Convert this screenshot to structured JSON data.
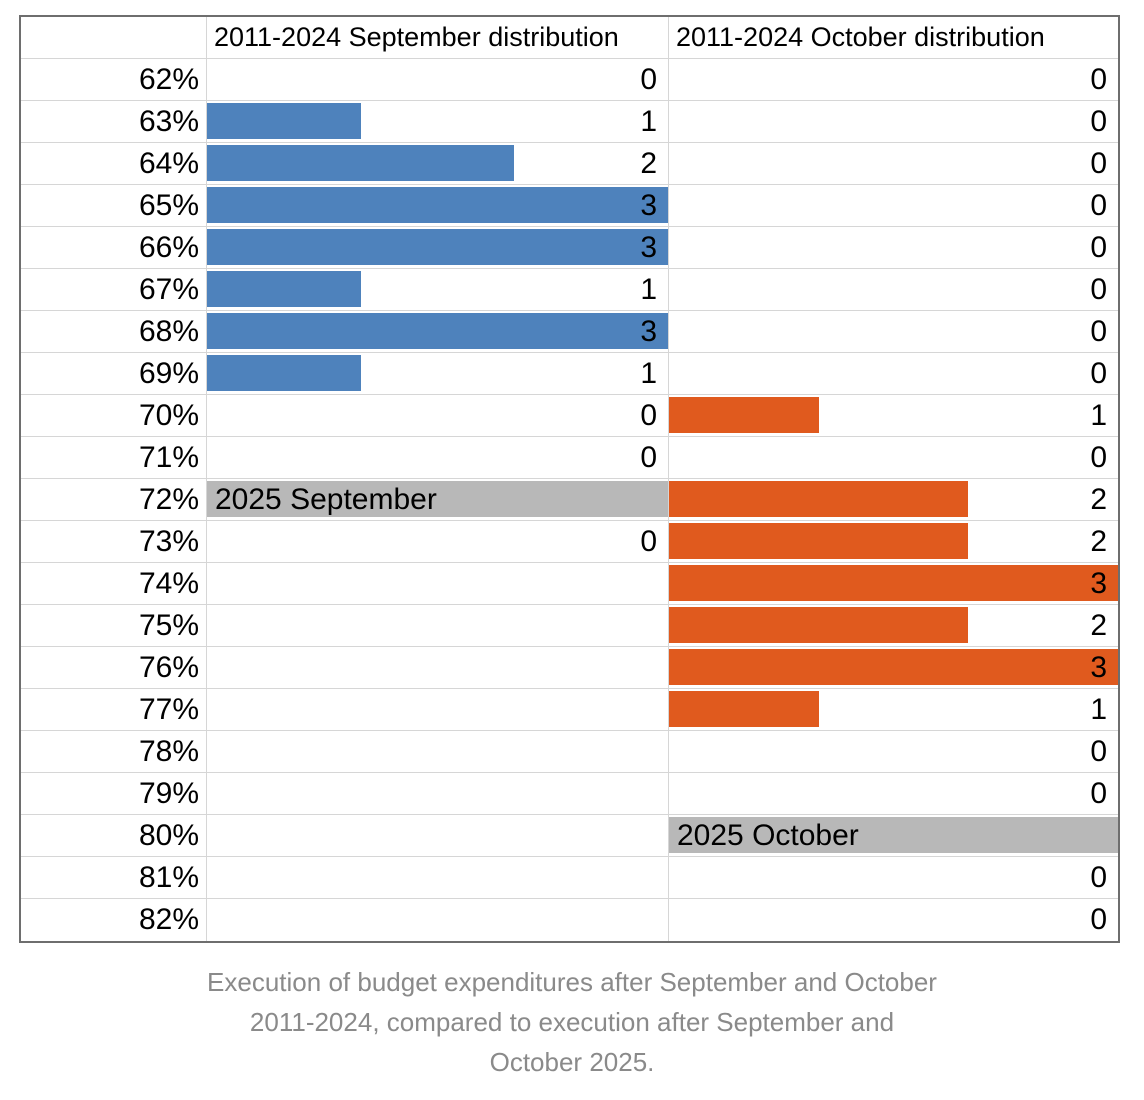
{
  "header": {
    "label_col": "",
    "september": "2011-2024 September distribution",
    "october": "2011-2024 October distribution"
  },
  "rows": [
    {
      "label": "62%",
      "sep": "0",
      "sep_bar": 0,
      "sep_marker": false,
      "oct": "0",
      "oct_bar": 0,
      "oct_marker": false
    },
    {
      "label": "63%",
      "sep": "1",
      "sep_bar": 1,
      "sep_marker": false,
      "oct": "0",
      "oct_bar": 0,
      "oct_marker": false
    },
    {
      "label": "64%",
      "sep": "2",
      "sep_bar": 2,
      "sep_marker": false,
      "oct": "0",
      "oct_bar": 0,
      "oct_marker": false
    },
    {
      "label": "65%",
      "sep": "3",
      "sep_bar": 3,
      "sep_marker": false,
      "oct": "0",
      "oct_bar": 0,
      "oct_marker": false
    },
    {
      "label": "66%",
      "sep": "3",
      "sep_bar": 3,
      "sep_marker": false,
      "oct": "0",
      "oct_bar": 0,
      "oct_marker": false
    },
    {
      "label": "67%",
      "sep": "1",
      "sep_bar": 1,
      "sep_marker": false,
      "oct": "0",
      "oct_bar": 0,
      "oct_marker": false
    },
    {
      "label": "68%",
      "sep": "3",
      "sep_bar": 3,
      "sep_marker": false,
      "oct": "0",
      "oct_bar": 0,
      "oct_marker": false
    },
    {
      "label": "69%",
      "sep": "1",
      "sep_bar": 1,
      "sep_marker": false,
      "oct": "0",
      "oct_bar": 0,
      "oct_marker": false
    },
    {
      "label": "70%",
      "sep": "0",
      "sep_bar": 0,
      "sep_marker": false,
      "oct": "1",
      "oct_bar": 1,
      "oct_marker": false
    },
    {
      "label": "71%",
      "sep": "0",
      "sep_bar": 0,
      "sep_marker": false,
      "oct": "0",
      "oct_bar": 0,
      "oct_marker": false
    },
    {
      "label": "72%",
      "sep": "2025 September",
      "sep_bar": 0,
      "sep_marker": true,
      "oct": "2",
      "oct_bar": 2,
      "oct_marker": false
    },
    {
      "label": "73%",
      "sep": "0",
      "sep_bar": 0,
      "sep_marker": false,
      "oct": "2",
      "oct_bar": 2,
      "oct_marker": false
    },
    {
      "label": "74%",
      "sep": "",
      "sep_bar": 0,
      "sep_marker": false,
      "oct": "3",
      "oct_bar": 3,
      "oct_marker": false
    },
    {
      "label": "75%",
      "sep": "",
      "sep_bar": 0,
      "sep_marker": false,
      "oct": "2",
      "oct_bar": 2,
      "oct_marker": false
    },
    {
      "label": "76%",
      "sep": "",
      "sep_bar": 0,
      "sep_marker": false,
      "oct": "3",
      "oct_bar": 3,
      "oct_marker": false
    },
    {
      "label": "77%",
      "sep": "",
      "sep_bar": 0,
      "sep_marker": false,
      "oct": "1",
      "oct_bar": 1,
      "oct_marker": false
    },
    {
      "label": "78%",
      "sep": "",
      "sep_bar": 0,
      "sep_marker": false,
      "oct": "0",
      "oct_bar": 0,
      "oct_marker": false
    },
    {
      "label": "79%",
      "sep": "",
      "sep_bar": 0,
      "sep_marker": false,
      "oct": "0",
      "oct_bar": 0,
      "oct_marker": false
    },
    {
      "label": "80%",
      "sep": "",
      "sep_bar": 0,
      "sep_marker": false,
      "oct": "2025 October",
      "oct_bar": 0,
      "oct_marker": true
    },
    {
      "label": "81%",
      "sep": "",
      "sep_bar": 0,
      "sep_marker": false,
      "oct": "0",
      "oct_bar": 0,
      "oct_marker": false
    },
    {
      "label": "82%",
      "sep": "",
      "sep_bar": 0,
      "sep_marker": false,
      "oct": "0",
      "oct_bar": 0,
      "oct_marker": false
    }
  ],
  "caption": {
    "lines": [
      "Execution of budget expenditures after September and October",
      "2011-2024, compared to execution after September and",
      "October 2025."
    ]
  },
  "colors": {
    "september_bar": "#4E82BC",
    "october_bar": "#E05A1E",
    "marker_bar": "#B8B8B8",
    "caption_text": "#8A8A8A",
    "grid_line": "#D6D6D6",
    "outer_border": "#6E6E6E"
  },
  "scale": {
    "bar_max": 3
  },
  "chart_data": {
    "type": "bar",
    "orientation": "horizontal",
    "categories": [
      "62%",
      "63%",
      "64%",
      "65%",
      "66%",
      "67%",
      "68%",
      "69%",
      "70%",
      "71%",
      "72%",
      "73%",
      "74%",
      "75%",
      "76%",
      "77%",
      "78%",
      "79%",
      "80%",
      "81%",
      "82%"
    ],
    "series": [
      {
        "name": "2011-2024 September distribution",
        "color": "#4E82BC",
        "values": [
          0,
          1,
          2,
          3,
          3,
          1,
          3,
          1,
          0,
          0,
          null,
          0,
          null,
          null,
          null,
          null,
          null,
          null,
          null,
          null,
          null
        ]
      },
      {
        "name": "2011-2024 October distribution",
        "color": "#E05A1E",
        "values": [
          0,
          0,
          0,
          0,
          0,
          0,
          0,
          0,
          1,
          0,
          2,
          2,
          3,
          2,
          3,
          1,
          0,
          0,
          null,
          0,
          0
        ]
      }
    ],
    "annotations": [
      {
        "category": "72%",
        "series": "2011-2024 September distribution",
        "label": "2025 September",
        "color": "#B8B8B8"
      },
      {
        "category": "80%",
        "series": "2011-2024 October distribution",
        "label": "2025 October",
        "color": "#B8B8B8"
      }
    ],
    "xlim": [
      0,
      3
    ],
    "value_labels": true,
    "grid": true,
    "title": "",
    "caption": "Execution of budget expenditures after September and October 2011-2024, compared to execution after September and October 2025."
  }
}
